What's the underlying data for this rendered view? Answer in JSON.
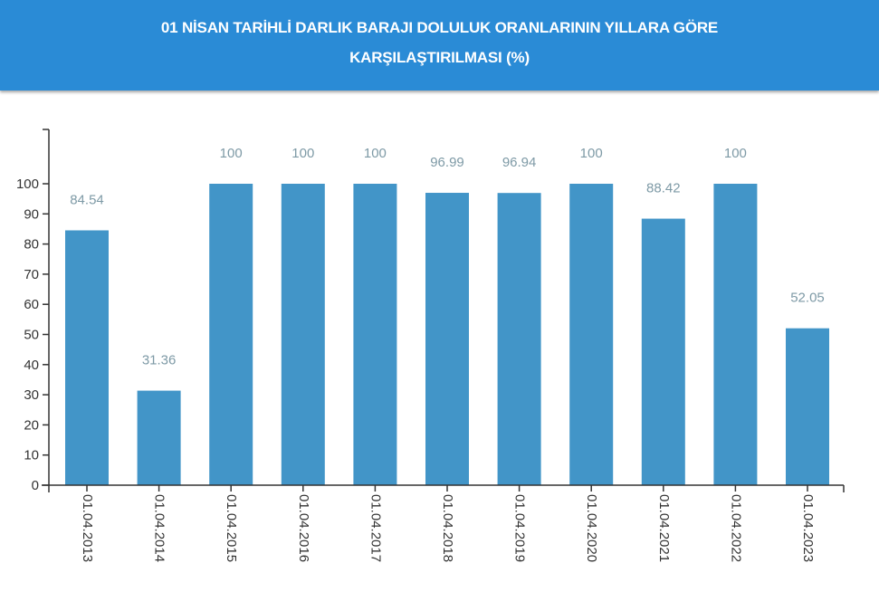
{
  "header": {
    "title_line1": "01 NİSAN TARİHLİ DARLIK BARAJI DOLULUK ORANLARININ YILLARA GÖRE",
    "title_line2": "KARŞILAŞTIRILMASI (%)"
  },
  "colors": {
    "header_bg": "#2a8bd6",
    "bar": "#4295c8",
    "value_label": "#7e9aa6",
    "axis": "#333333"
  },
  "chart_data": {
    "type": "bar",
    "title": "01 NİSAN TARİHLİ DARLIK BARAJI DOLULUK ORANLARININ YILLARA GÖRE KARŞILAŞTIRILMASI (%)",
    "xlabel": "",
    "ylabel": "",
    "categories": [
      "01.04.2013",
      "01.04.2014",
      "01.04.2015",
      "01.04.2016",
      "01.04.2017",
      "01.04.2018",
      "01.04.2019",
      "01.04.2020",
      "01.04.2021",
      "01.04.2022",
      "01.04.2023"
    ],
    "values": [
      84.54,
      31.36,
      100,
      100,
      100,
      96.99,
      96.94,
      100,
      88.42,
      100,
      52.05
    ],
    "value_labels": [
      "84.54",
      "31.36",
      "100",
      "100",
      "100",
      "96.99",
      "96.94",
      "100",
      "88.42",
      "100",
      "52.05"
    ],
    "yticks": [
      0,
      10,
      20,
      30,
      40,
      50,
      60,
      70,
      80,
      90,
      100
    ],
    "ylim": [
      0,
      118
    ],
    "grid": false,
    "legend": "none",
    "x_tick_rotation": 90
  }
}
